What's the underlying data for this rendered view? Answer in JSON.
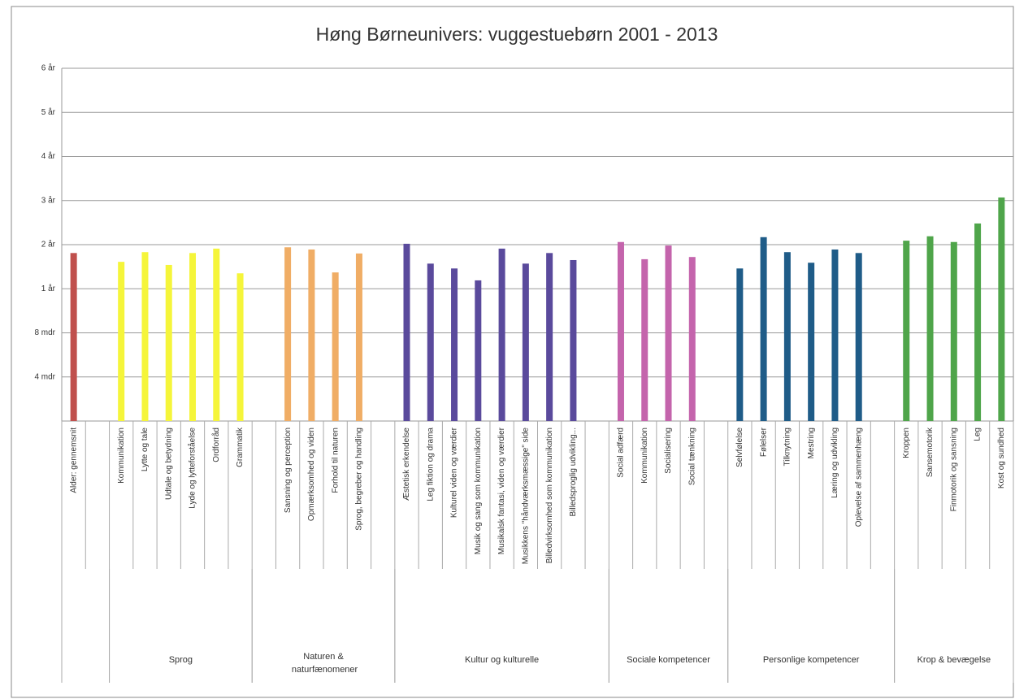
{
  "chart_data": {
    "type": "bar",
    "title": "Høng Børneunivers: vuggestuebørn 2001 - 2013",
    "categories": [
      "Alder: gennemsnit",
      null,
      "Kommunikation",
      "Lytte og tale",
      "Udtale og betydning",
      "Lyde og lytteforståelse",
      "Ordforråd",
      "Grammatik",
      null,
      "Sansning og perception",
      "Opmærksomhed og  viden",
      "Forhold til naturen",
      "Sprog, begreber og handling",
      null,
      "Æstetisk erkendelse",
      "Leg fiktion og drama",
      "Kulturel viden og værdier",
      "Musik og sang som kommunikation",
      "Musikalsk fantasi, viden og værdier",
      "Musikkens \"håndværksmæssige\" side",
      "Billedvirksomhed som kommunikation",
      "Billedsproglig udvikling...",
      null,
      "Social adfærd",
      "Kommunikation",
      "Socialisering",
      "Social tænkning",
      null,
      "Selvfølelse",
      "Følelser",
      "Tilknytning",
      "Mestring",
      "Læring og udvikling",
      "Oplevelse af sammenhæng",
      null,
      "Kroppen",
      "Sansemotorik",
      "Finmotorik og sansning",
      "Leg",
      "Kost og sundhed"
    ],
    "values": [
      3.81,
      null,
      3.61,
      3.83,
      3.54,
      3.81,
      3.91,
      3.35,
      null,
      3.94,
      3.89,
      3.37,
      3.8,
      null,
      4.02,
      3.57,
      3.46,
      3.19,
      3.91,
      3.57,
      3.81,
      3.65,
      null,
      4.06,
      3.67,
      3.98,
      3.72,
      null,
      3.46,
      4.17,
      3.83,
      3.59,
      3.89,
      3.81,
      null,
      4.09,
      4.19,
      4.06,
      4.48,
      5.07
    ],
    "groups": [
      {
        "span": [
          0,
          2
        ],
        "color": "#c0504d"
      },
      {
        "label": "Sprog",
        "span": [
          2,
          8
        ],
        "color": "#f5f53a"
      },
      {
        "label": "Naturen & naturfænomener",
        "span": [
          8,
          14
        ],
        "color": "#f0ad65"
      },
      {
        "label": "Kultur og kulturelle",
        "span": [
          14,
          23
        ],
        "color": "#5a4a9c"
      },
      {
        "label": "Sociale kompetencer",
        "span": [
          23,
          28
        ],
        "color": "#c464ac"
      },
      {
        "label": "Personlige kompetencer",
        "span": [
          28,
          35
        ],
        "color": "#1f5c88"
      },
      {
        "label": "Krop & bevægelse",
        "span": [
          35,
          40
        ],
        "color": "#4fa54a"
      }
    ],
    "ylim": [
      0,
      8
    ],
    "yticks": [
      {
        "value": 1,
        "label": "4 mdr"
      },
      {
        "value": 2,
        "label": "8 mdr"
      },
      {
        "value": 3,
        "label": "1 år"
      },
      {
        "value": 4,
        "label": "2 år"
      },
      {
        "value": 5,
        "label": "3 år"
      },
      {
        "value": 6,
        "label": "4 år"
      },
      {
        "value": 7,
        "label": "5 år"
      },
      {
        "value": 8,
        "label": "6 år"
      }
    ],
    "grid": true
  }
}
